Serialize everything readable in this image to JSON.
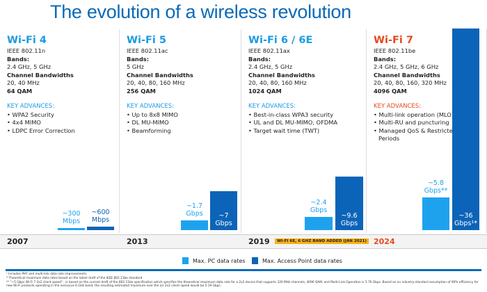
{
  "title": "The evolution of a wireless revolution",
  "colors": {
    "pc": "#1fa2ee",
    "ap": "#0c64b8",
    "title": "#0a6ab8",
    "wifi7": "#e8491d",
    "note_bg": "#f5b21b"
  },
  "columns": [
    {
      "name": "Wi-Fi 4",
      "std": "IEEE 802.11n",
      "bands_label": "Bands:",
      "bands": "2.4 GHz, 5 GHz",
      "cb_label": "Channel Bandwidths",
      "cb": "20, 40 MHz",
      "qam": "64 QAM",
      "ka_label": "KEY ADVANCES:",
      "advances": [
        "WPA2 Security",
        "4x4 MIMO",
        "LDPC Error Correction"
      ],
      "year": "2007",
      "pc_label": "~300 Mbps",
      "ap_label": "~600 Mbps"
    },
    {
      "name": "Wi-Fi 5",
      "std": "IEEE 802.11ac",
      "bands_label": "Bands:",
      "bands": "5 GHz",
      "cb_label": "Channel Bandwidths",
      "cb": "20, 40, 80, 160 MHz",
      "qam": "256 QAM",
      "ka_label": "KEY ADVANCES:",
      "advances": [
        "Up to 8x8 MIMO",
        "DL MU-MIMO",
        "Beamforming"
      ],
      "year": "2013",
      "pc_label": "~1.7 Gbps",
      "ap_label": "~7 Gbps"
    },
    {
      "name": "Wi-Fi 6 / 6E",
      "std": "IEEE 802.11ax",
      "bands_label": "Bands:",
      "bands": "2.4 GHz, 5 GHz",
      "cb_label": "Channel Bandwidths",
      "cb": "20, 40, 80, 160 MHz",
      "qam": "1024 QAM",
      "ka_label": "KEY ADVANCES:",
      "advances": [
        "Best-in-class WPA3 security",
        "UL and DL MU-MIMO, OFDMA",
        "Target wait time (TWT)"
      ],
      "year": "2019",
      "note": "WI-FI 6E, 6 GHZ BAND ADDED (JAN 2021)",
      "pc_label": "~2.4 Gbps",
      "ap_label": "~9.6 Gbps"
    },
    {
      "name": "Wi-Fi 7",
      "std": "IEEE 802.11be",
      "bands_label": "Bands:",
      "bands": "2.4 GHz, 5 GHz, 6 GHz",
      "cb_label": "Channel Bandwidths",
      "cb": "20, 40, 80, 160, 320 MHz",
      "qam": "4096 QAM",
      "ka_label": "KEY ADVANCES:",
      "advances": [
        "Multi-link operation (MLO)",
        "Multi-RU and puncturing",
        "Managed QoS & Restricted Service Periods"
      ],
      "year": "2024",
      "pc_label": "~5.8 Gbps**",
      "ap_label": "~36 Gbps¹*"
    }
  ],
  "chart_data": {
    "type": "bar",
    "categories": [
      "Wi-Fi 4",
      "Wi-Fi 5",
      "Wi-Fi 6 / 6E",
      "Wi-Fi 7"
    ],
    "unit": "Gbps",
    "series": [
      {
        "name": "Max. PC data rates",
        "values": [
          0.3,
          1.7,
          2.4,
          5.8
        ]
      },
      {
        "name": "Max. Access Point data rates",
        "values": [
          0.6,
          7,
          9.6,
          36
        ]
      }
    ],
    "legend_position": "bottom"
  },
  "footnotes": [
    "¹ Includes PHY and multi-link data rate improvements",
    "* Theoretical maximum data rates based on the latest draft of the IEEE 802.11be standard.",
    "** \"~5 Gbps Wi-Fi 7 2x2 client speed\" - is based on the current draft of the 802.11be specification which specifies the theoretical maximum data rate for a 2x2 device that supports 320 MHz channels, 4096 QAM, and Multi-Link Operation is 5.76 Gbps. Based on an industry-standard assumption of 90% efficiency for new Wi-Fi products operating in the exclusive 6 GHz band, the resulting estimated maximum over the air 2x2 client speed would be 5.19 Gbps."
  ]
}
